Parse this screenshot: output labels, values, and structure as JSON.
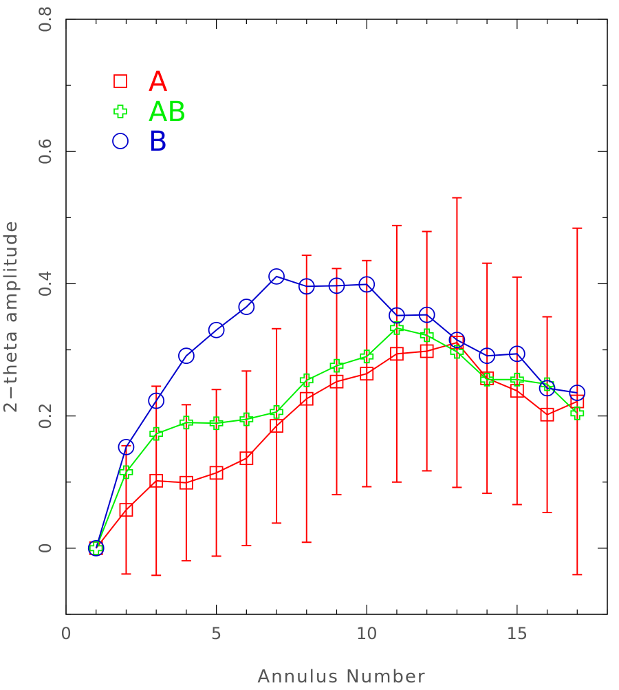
{
  "chart_data": {
    "type": "scatter",
    "title": "",
    "xlabel": "Annulus Number",
    "ylabel": "2−theta amplitude",
    "xlim": [
      0,
      18
    ],
    "ylim": [
      -0.1,
      0.8
    ],
    "x_ticks": [
      0,
      5,
      10,
      15
    ],
    "x_tick_labels": [
      "0",
      "5",
      "10",
      "15"
    ],
    "y_ticks": [
      0,
      0.2,
      0.4,
      0.6,
      0.8
    ],
    "y_tick_labels": [
      "0",
      "0.2",
      "0.4",
      "0.6",
      "0.8"
    ],
    "grid": false,
    "legend_position": "top-left",
    "series": [
      {
        "name": "A",
        "color": "#ff0000",
        "marker": "square",
        "x": [
          1,
          2,
          3,
          4,
          5,
          6,
          7,
          8,
          9,
          10,
          11,
          12,
          13,
          14,
          15,
          16,
          17
        ],
        "y": [
          0.0,
          0.058,
          0.102,
          0.099,
          0.114,
          0.136,
          0.185,
          0.226,
          0.252,
          0.264,
          0.294,
          0.298,
          0.311,
          0.257,
          0.238,
          0.202,
          0.222
        ],
        "error": [
          0,
          0.097,
          0.143,
          0.118,
          0.126,
          0.132,
          0.147,
          0.217,
          0.171,
          0.171,
          0.194,
          0.181,
          0.219,
          0.174,
          0.172,
          0.148,
          0.262
        ]
      },
      {
        "name": "AB",
        "color": "#00ee00",
        "marker": "cross",
        "x": [
          1,
          2,
          3,
          4,
          5,
          6,
          7,
          8,
          9,
          10,
          11,
          12,
          13,
          14,
          15,
          16,
          17
        ],
        "y": [
          0.0,
          0.115,
          0.173,
          0.19,
          0.189,
          0.195,
          0.206,
          0.254,
          0.276,
          0.29,
          0.333,
          0.322,
          0.297,
          0.255,
          0.255,
          0.248,
          0.204
        ]
      },
      {
        "name": "B",
        "color": "#0000cc",
        "marker": "circle",
        "x": [
          1,
          2,
          3,
          4,
          5,
          6,
          7,
          8,
          9,
          10,
          11,
          12,
          13,
          14,
          15,
          16,
          17
        ],
        "y": [
          0.0,
          0.153,
          0.223,
          0.291,
          0.33,
          0.365,
          0.411,
          0.396,
          0.397,
          0.399,
          0.352,
          0.353,
          0.315,
          0.291,
          0.294,
          0.242,
          0.235
        ]
      }
    ]
  }
}
